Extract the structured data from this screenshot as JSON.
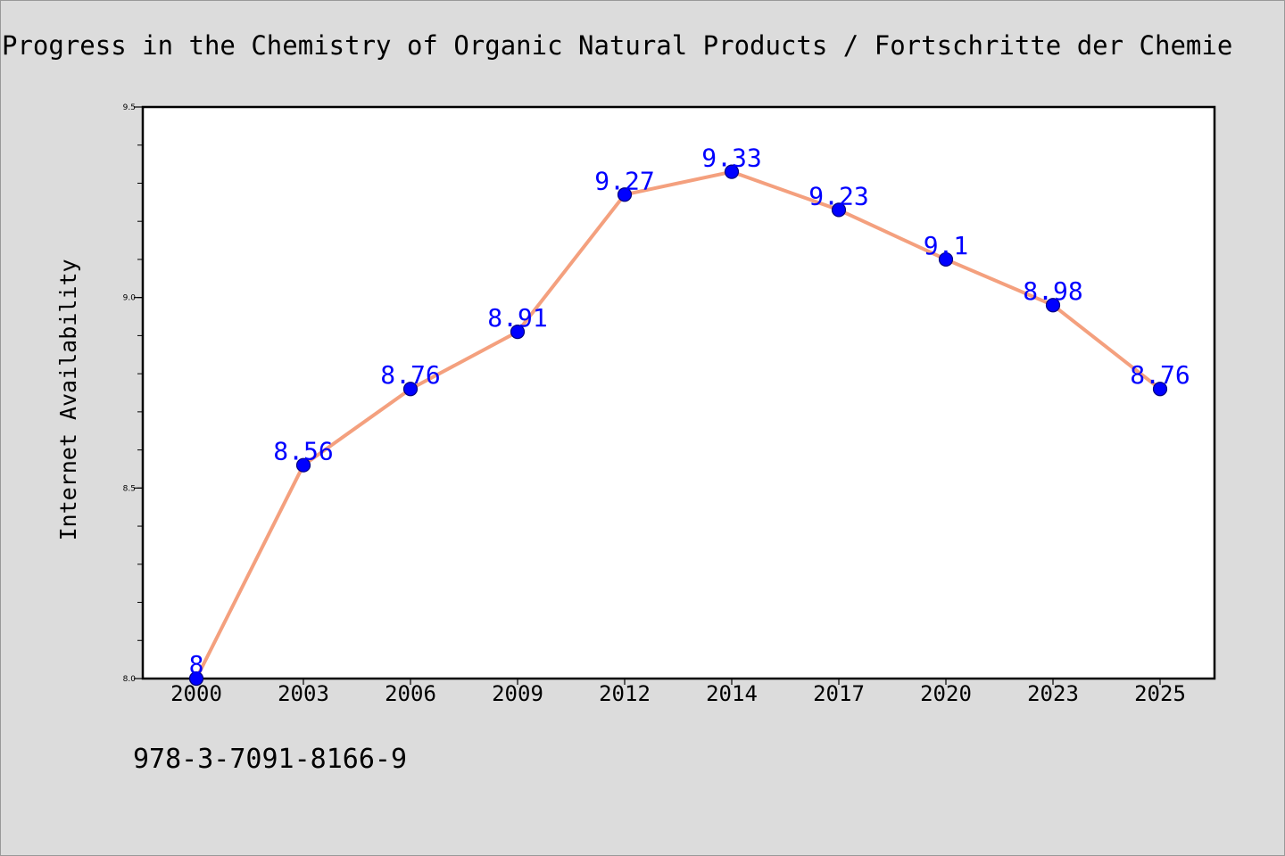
{
  "chart_data": {
    "type": "line",
    "title": "Progress in the Chemistry of Organic Natural Products / Fortschritte der Chemie",
    "xlabel": "",
    "ylabel": "Internet Availability",
    "categories": [
      "2000",
      "2003",
      "2006",
      "2009",
      "2012",
      "2014",
      "2017",
      "2020",
      "2023",
      "2025"
    ],
    "values": [
      8,
      8.56,
      8.76,
      8.91,
      9.27,
      9.33,
      9.23,
      9.1,
      8.98,
      8.76
    ],
    "data_labels": [
      "8",
      "8.56",
      "8.76",
      "8.91",
      "9.27",
      "9.33",
      "9.23",
      "9.1",
      "8.98",
      "8.76"
    ],
    "ylim": [
      8.0,
      9.5
    ],
    "yticks": [
      8.0,
      8.5,
      9.0,
      9.5
    ],
    "ytick_labels": [
      "8.0",
      "8.5",
      "9.0",
      "9.5"
    ],
    "grid": false,
    "legend": "none",
    "colors": {
      "line": "#f4a07e",
      "marker": "#0000ff",
      "marker_edge": "#000080",
      "data_label": "#0000ff",
      "plot_background": "#ffffff",
      "page_background": "#dcdcdc"
    }
  },
  "footer": {
    "isbn": "978-3-7091-8166-9"
  }
}
